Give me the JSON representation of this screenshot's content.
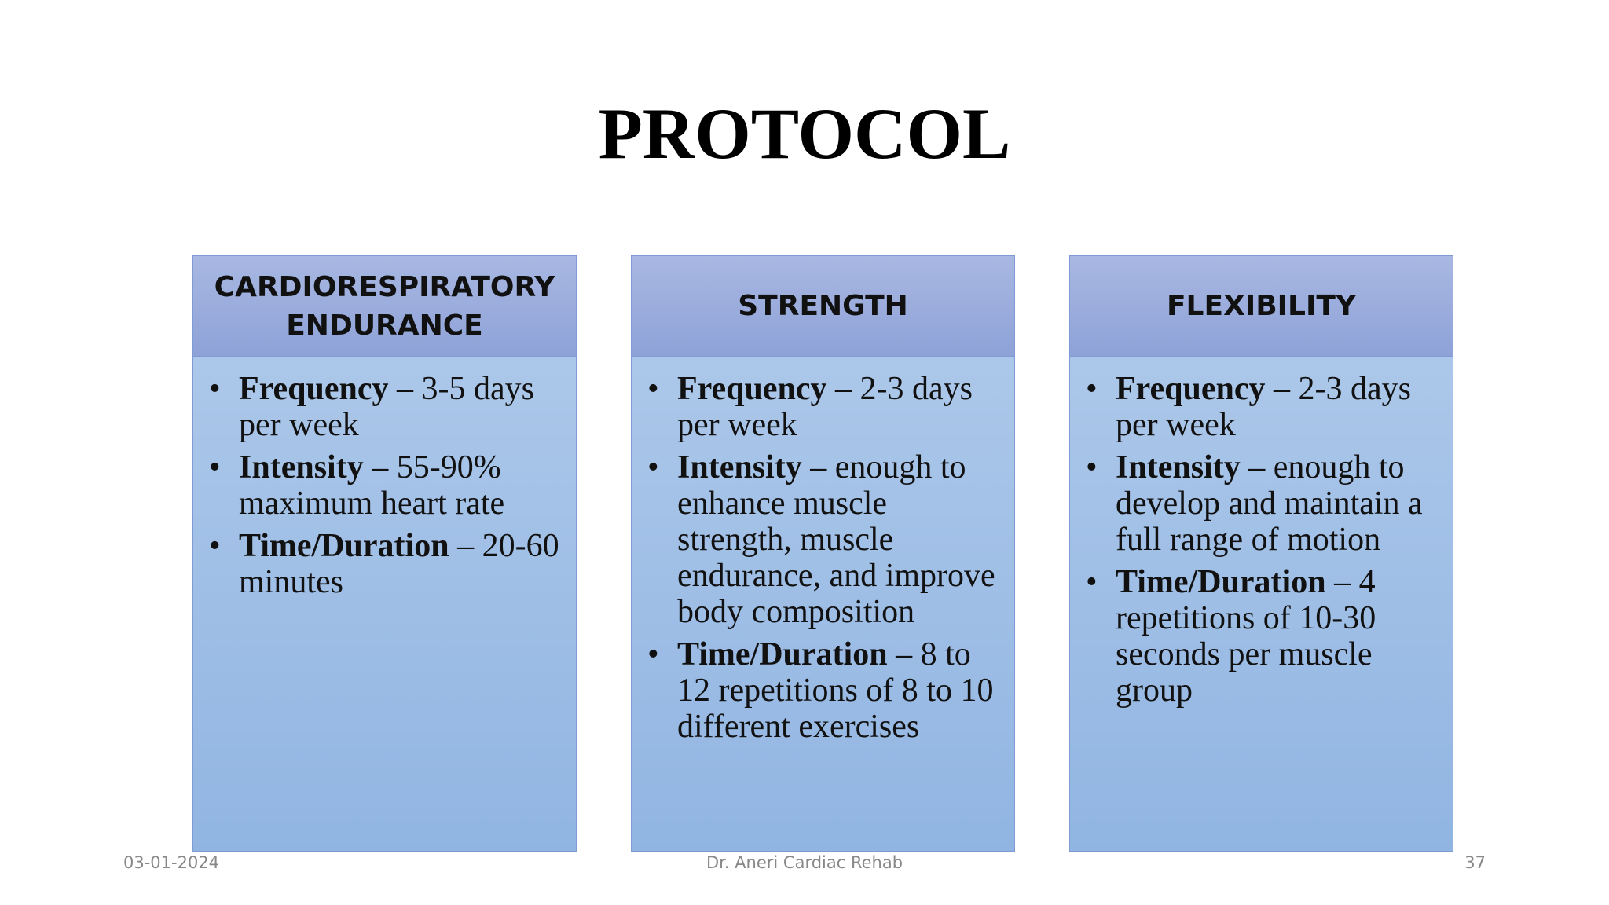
{
  "title": "PROTOCOL",
  "columns": [
    {
      "header": "CARDIORESPIRATORY ENDURANCE",
      "items": [
        {
          "term": "Frequency",
          "text": " – 3-5 days per week"
        },
        {
          "term": "Intensity",
          "text": " – 55-90% maximum heart rate"
        },
        {
          "term": "Time/Duration",
          "text": " – 20-60 minutes"
        }
      ]
    },
    {
      "header": "STRENGTH",
      "items": [
        {
          "term": "Frequency",
          "text": " – 2-3 days per week"
        },
        {
          "term": "Intensity",
          "text": " – enough to enhance muscle strength, muscle endurance, and improve body composition"
        },
        {
          "term": "Time/Duration",
          "text": " – 8 to 12 repetitions of 8 to 10 different exercises"
        }
      ]
    },
    {
      "header": "FLEXIBILITY",
      "items": [
        {
          "term": "Frequency",
          "text": " – 2-3 days per week"
        },
        {
          "term": "Intensity",
          "text": " – enough to develop and maintain a full range of motion"
        },
        {
          "term": "Time/Duration",
          "text": " – 4 repetitions of 10-30 seconds per muscle group"
        }
      ]
    }
  ],
  "footer": {
    "date": "03-01-2024",
    "center": "Dr. Aneri Cardiac Rehab",
    "page": "37"
  }
}
